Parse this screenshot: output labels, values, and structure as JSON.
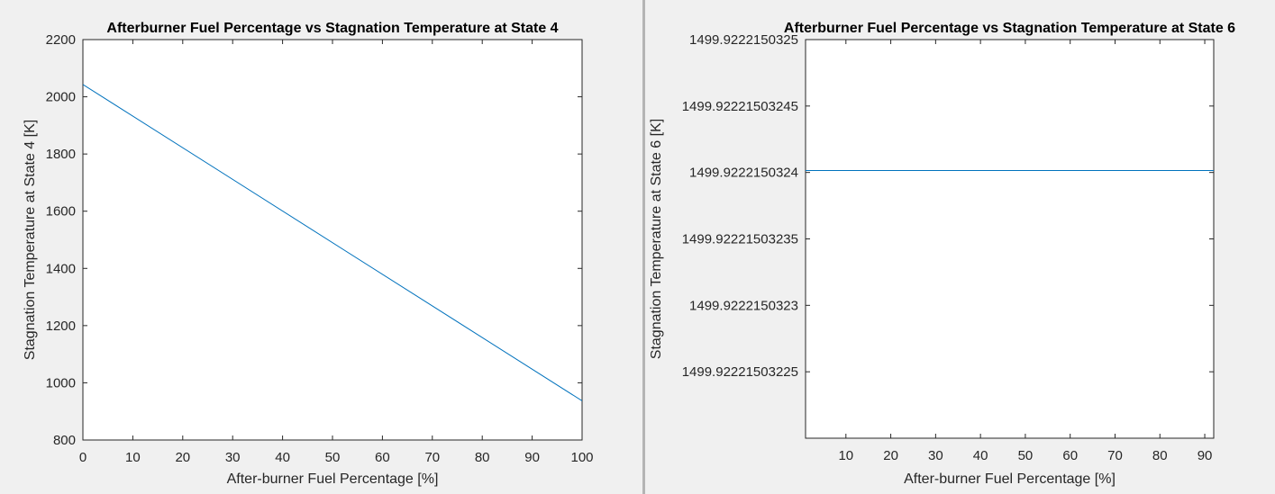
{
  "window": {
    "divider_color": "#b4b4b4",
    "background": "#f0f0f0"
  },
  "chart_data": [
    {
      "type": "line",
      "title": "Afterburner Fuel Percentage vs Stagnation Temperature at State 4",
      "xlabel": "After-burner Fuel Percentage [%]",
      "ylabel": "Stagnation Temperature at State 4 [K]",
      "xlim": [
        0,
        100
      ],
      "ylim": [
        800,
        2200
      ],
      "xticks": [
        0,
        10,
        20,
        30,
        40,
        50,
        60,
        70,
        80,
        90,
        100
      ],
      "yticks": [
        800,
        1000,
        1200,
        1400,
        1600,
        1800,
        2000,
        2200
      ],
      "xtick_labels": [
        "0",
        "10",
        "20",
        "30",
        "40",
        "50",
        "60",
        "70",
        "80",
        "90",
        "100"
      ],
      "ytick_labels": [
        "800",
        "1000",
        "1200",
        "1400",
        "1600",
        "1800",
        "2000",
        "2200"
      ],
      "grid": false,
      "series": [
        {
          "color": "#0072bd",
          "x": [
            0,
            100
          ],
          "y": [
            2043,
            937
          ]
        }
      ]
    },
    {
      "type": "line",
      "title": "Afterburner Fuel Percentage vs Stagnation Temperature at State 6",
      "xlabel": "After-burner Fuel Percentage [%]",
      "ylabel": "Stagnation Temperature at State 6 [K]",
      "xlim": [
        1,
        92
      ],
      "ylim": [
        0,
        6
      ],
      "xticks": [
        10,
        20,
        30,
        40,
        50,
        60,
        70,
        80,
        90
      ],
      "yticks": [
        1,
        2,
        3,
        4,
        5,
        6
      ],
      "xtick_labels": [
        "10",
        "20",
        "30",
        "40",
        "50",
        "60",
        "70",
        "80",
        "90"
      ],
      "ytick_labels": [
        "1499.92221503225",
        "1499.9222150323",
        "1499.92221503235",
        "1499.9222150324",
        "1499.92221503245",
        "1499.9222150325"
      ],
      "grid": false,
      "series": [
        {
          "color": "#0072bd",
          "x": [
            1,
            92
          ],
          "y": [
            4.03,
            4.03
          ]
        }
      ]
    }
  ]
}
